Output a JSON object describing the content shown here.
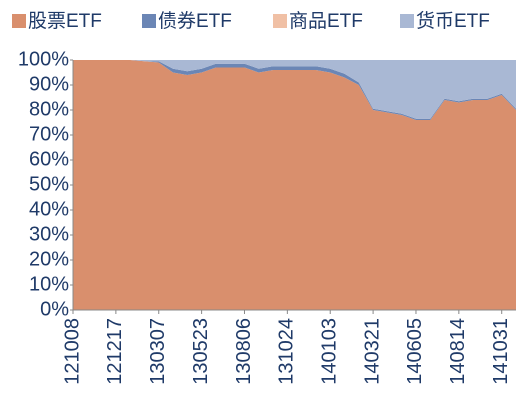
{
  "chart_data": {
    "type": "stacked_area",
    "categories": [
      "121008",
      null,
      null,
      "121217",
      null,
      null,
      "130307",
      null,
      null,
      "130523",
      null,
      null,
      "130806",
      null,
      null,
      "131024",
      null,
      null,
      "140103",
      null,
      null,
      "140321",
      null,
      null,
      "140605",
      null,
      null,
      "140814",
      null,
      null,
      "141031",
      null
    ],
    "series": [
      {
        "name": "股票ETF",
        "color": "#d98f6d",
        "values": [
          100,
          100,
          100,
          100,
          100,
          99.5,
          99,
          95,
          94,
          95,
          97,
          97,
          97,
          95,
          96,
          96,
          96,
          96,
          95,
          93,
          90,
          80,
          79,
          78,
          76,
          76,
          84,
          83,
          84,
          84,
          86,
          80
        ]
      },
      {
        "name": "债券ETF",
        "color": "#6b86b5",
        "values": [
          0,
          0,
          0,
          0,
          0,
          0,
          0.5,
          1.5,
          1.5,
          1.5,
          1.5,
          1.5,
          1.5,
          1.5,
          1.5,
          1.5,
          1.5,
          1.5,
          1.5,
          1.5,
          1,
          0.5,
          0.5,
          0.5,
          0.5,
          0.5,
          0.5,
          0.5,
          0.5,
          0.5,
          0.5,
          0.5
        ]
      },
      {
        "name": "商品ETF",
        "color": "#f0c0a5",
        "values": [
          0,
          0,
          0,
          0,
          0,
          0,
          0,
          0,
          0,
          0,
          0,
          0,
          0,
          0,
          0,
          0,
          0,
          0,
          0,
          0,
          0,
          0,
          0,
          0,
          0,
          0,
          0,
          0,
          0,
          0,
          0,
          0
        ]
      },
      {
        "name": "货币ETF",
        "color": "#a9b8d4",
        "values": [
          0,
          0,
          0,
          0,
          0,
          0.5,
          0.5,
          3.5,
          4.5,
          3.5,
          1.5,
          1.5,
          1.5,
          3.5,
          2.5,
          2.5,
          2.5,
          2.5,
          3.5,
          5.5,
          9,
          19.5,
          20.5,
          21.5,
          23.5,
          23.5,
          15.5,
          16.5,
          15.5,
          15.5,
          13.5,
          19.5
        ]
      }
    ],
    "ylim": [
      0,
      100
    ],
    "yticks": [
      {
        "value": 0,
        "label": "0%"
      },
      {
        "value": 10,
        "label": "10%"
      },
      {
        "value": 20,
        "label": "20%"
      },
      {
        "value": 30,
        "label": "30%"
      },
      {
        "value": 40,
        "label": "40%"
      },
      {
        "value": 50,
        "label": "50%"
      },
      {
        "value": 60,
        "label": "60%"
      },
      {
        "value": 70,
        "label": "70%"
      },
      {
        "value": 80,
        "label": "80%"
      },
      {
        "value": 90,
        "label": "90%"
      },
      {
        "value": 100,
        "label": "100%"
      }
    ],
    "legend": "top"
  }
}
